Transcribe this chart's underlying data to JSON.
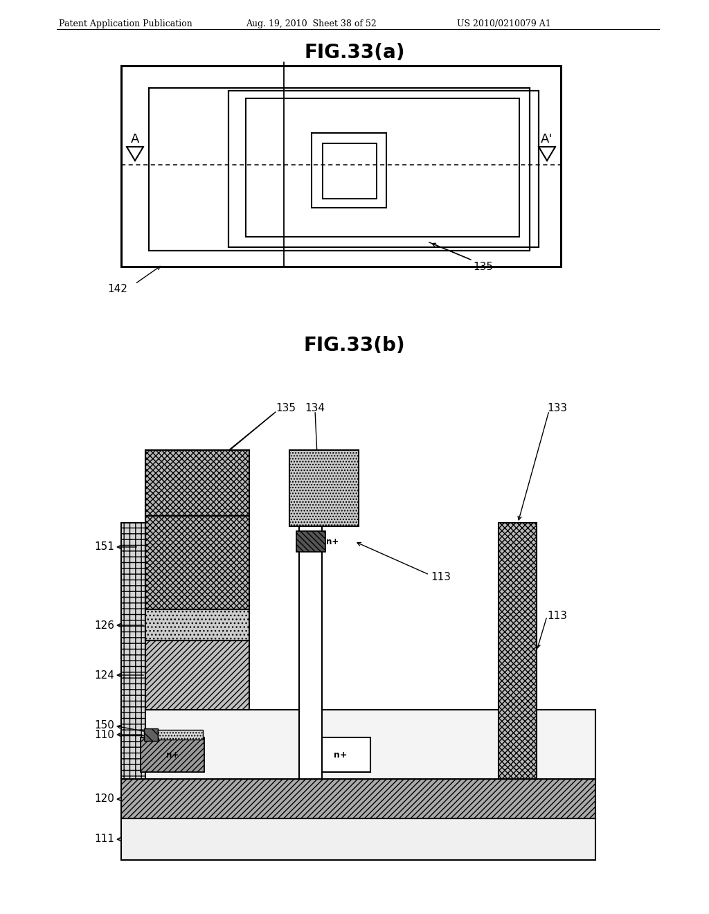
{
  "bg": "#ffffff",
  "header_left": "Patent Application Publication",
  "header_mid": "Aug. 19, 2010  Sheet 38 of 52",
  "header_right": "US 2010/0210079 A1",
  "fig_a_title": "FIG.33(a)",
  "fig_b_title": "FIG.33(b)",
  "lc": "#000000",
  "gray_light": "#e8e8e8",
  "gray_mid": "#b0b0b0",
  "gray_dark": "#888888",
  "gray_120": "#aaaaaa"
}
